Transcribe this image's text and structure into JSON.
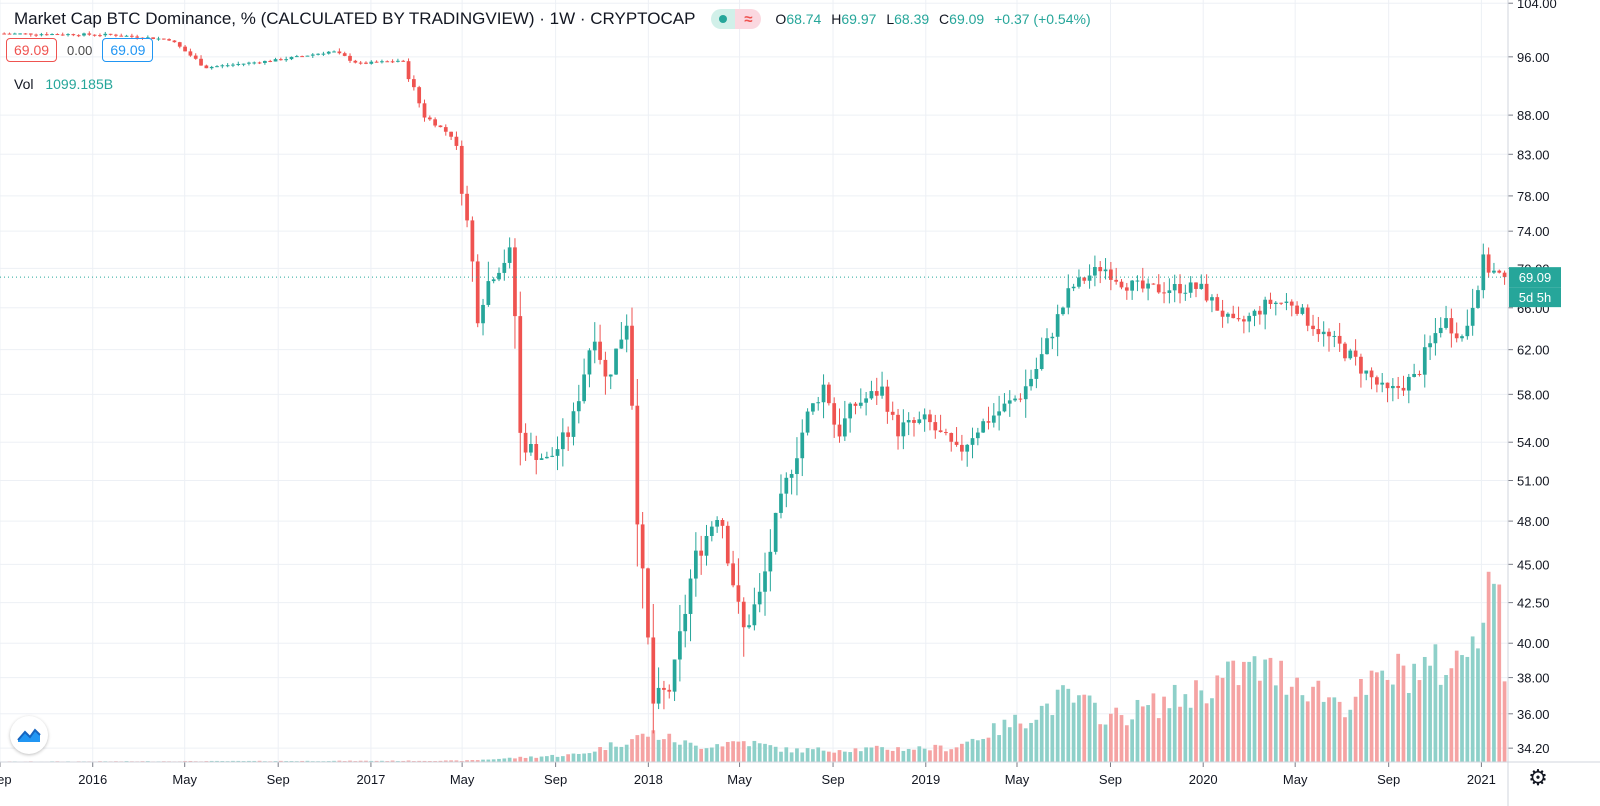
{
  "header": {
    "title": "Market Cap BTC Dominance, % (CALCULATED BY TRADINGVIEW) · 1W · CRYPTOCAP",
    "ohlc": {
      "o_label": "O",
      "o_value": "68.74",
      "h_label": "H",
      "h_value": "69.97",
      "l_label": "L",
      "l_value": "68.39",
      "c_label": "C",
      "c_value": "69.09",
      "change": "+0.37 (+0.54%)"
    }
  },
  "spread_row": {
    "bid": "69.09",
    "spread": "0.00",
    "ask": "69.09"
  },
  "volume": {
    "label": "Vol",
    "value": "1099.185B"
  },
  "price_axis": {
    "last_price_label": "69.09",
    "countdown_label": "5d 5h"
  },
  "colors": {
    "up": "#26a69a",
    "down": "#ef5350",
    "up_volume": "#8ed0c9",
    "down_volume": "#f5a3a3",
    "grid": "#edf0f5",
    "text": "#131722"
  },
  "icons": {
    "logo": "tradingview-logo-icon",
    "settings": "gear-icon",
    "eq": "equals-icon"
  },
  "chart_data": {
    "type": "candlestick",
    "title": "Market Cap BTC Dominance, % (CALCULATED BY TRADINGVIEW)",
    "interval": "1W",
    "exchange": "CRYPTOCAP",
    "y_scale": "log",
    "ylim": [
      33.5,
      104.5
    ],
    "y_ticks": [
      "104.00",
      "96.00",
      "88.00",
      "83.00",
      "78.00",
      "74.00",
      "70.00",
      "66.00",
      "62.00",
      "58.00",
      "54.00",
      "51.00",
      "48.00",
      "45.00",
      "42.50",
      "40.00",
      "38.00",
      "36.00",
      "34.20"
    ],
    "x_range": [
      "2015-09-01",
      "2021-02-05"
    ],
    "x_ticks": [
      {
        "date": "2015-09-01",
        "label": "Sep"
      },
      {
        "date": "2016-01-01",
        "label": "2016"
      },
      {
        "date": "2016-05-01",
        "label": "May"
      },
      {
        "date": "2016-09-01",
        "label": "Sep"
      },
      {
        "date": "2017-01-01",
        "label": "2017"
      },
      {
        "date": "2017-05-01",
        "label": "May"
      },
      {
        "date": "2017-09-01",
        "label": "Sep"
      },
      {
        "date": "2018-01-01",
        "label": "2018"
      },
      {
        "date": "2018-05-01",
        "label": "May"
      },
      {
        "date": "2018-09-01",
        "label": "Sep"
      },
      {
        "date": "2019-01-01",
        "label": "2019"
      },
      {
        "date": "2019-05-01",
        "label": "May"
      },
      {
        "date": "2019-09-01",
        "label": "Sep"
      },
      {
        "date": "2020-01-01",
        "label": "2020"
      },
      {
        "date": "2020-05-01",
        "label": "May"
      },
      {
        "date": "2020-09-01",
        "label": "Sep"
      },
      {
        "date": "2021-01-01",
        "label": "2021"
      }
    ],
    "last_close": 69.09,
    "price_anchors": [
      [
        "2015-09-01",
        99.4
      ],
      [
        "2016-02-01",
        99.2
      ],
      [
        "2016-04-15",
        98.5
      ],
      [
        "2016-06-01",
        94.5
      ],
      [
        "2016-09-01",
        95.5
      ],
      [
        "2016-11-15",
        96.8
      ],
      [
        "2016-12-20",
        95.0
      ],
      [
        "2017-02-15",
        95.5
      ],
      [
        "2017-03-15",
        88.0
      ],
      [
        "2017-04-25",
        85.0
      ],
      [
        "2017-05-25",
        66.0
      ],
      [
        "2017-06-10",
        69.0
      ],
      [
        "2017-07-10",
        72.0
      ],
      [
        "2017-07-18",
        54.2
      ],
      [
        "2017-08-25",
        52.5
      ],
      [
        "2017-09-25",
        55.0
      ],
      [
        "2017-10-25",
        64.0
      ],
      [
        "2017-11-10",
        59.0
      ],
      [
        "2017-12-08",
        65.0
      ],
      [
        "2017-12-25",
        45.0
      ],
      [
        "2018-01-10",
        36.5
      ],
      [
        "2018-02-05",
        37.5
      ],
      [
        "2018-03-05",
        45.0
      ],
      [
        "2018-04-08",
        49.0
      ],
      [
        "2018-05-08",
        40.5
      ],
      [
        "2018-06-01",
        43.0
      ],
      [
        "2018-07-01",
        50.0
      ],
      [
        "2018-08-01",
        56.0
      ],
      [
        "2018-08-25",
        59.0
      ],
      [
        "2018-09-10",
        54.5
      ],
      [
        "2018-10-01",
        57.0
      ],
      [
        "2018-11-10",
        58.5
      ],
      [
        "2018-11-25",
        55.0
      ],
      [
        "2019-01-05",
        55.8
      ],
      [
        "2019-02-15",
        53.0
      ],
      [
        "2019-03-10",
        55.0
      ],
      [
        "2019-05-10",
        58.0
      ],
      [
        "2019-06-01",
        60.5
      ],
      [
        "2019-07-15",
        68.0
      ],
      [
        "2019-08-25",
        70.2
      ],
      [
        "2019-09-20",
        68.5
      ],
      [
        "2019-10-20",
        67.8
      ],
      [
        "2019-12-01",
        68.0
      ],
      [
        "2020-01-01",
        68.0
      ],
      [
        "2020-02-15",
        64.0
      ],
      [
        "2020-04-01",
        66.5
      ],
      [
        "2020-05-01",
        66.5
      ],
      [
        "2020-06-01",
        64.0
      ],
      [
        "2020-07-15",
        61.5
      ],
      [
        "2020-09-01",
        58.0
      ],
      [
        "2020-10-10",
        59.5
      ],
      [
        "2020-11-15",
        65.0
      ],
      [
        "2020-12-12",
        63.0
      ],
      [
        "2021-01-05",
        70.5
      ],
      [
        "2021-01-31",
        69.09
      ]
    ],
    "volume_anchors": [
      [
        "2015-09-01",
        0.2
      ],
      [
        "2017-05-01",
        0.5
      ],
      [
        "2017-10-01",
        3.0
      ],
      [
        "2018-01-01",
        11.0
      ],
      [
        "2018-03-01",
        6.0
      ],
      [
        "2018-05-01",
        8.0
      ],
      [
        "2018-07-01",
        4.5
      ],
      [
        "2019-02-01",
        5.5
      ],
      [
        "2019-05-01",
        16.0
      ],
      [
        "2019-07-01",
        25.0
      ],
      [
        "2019-09-01",
        17.0
      ],
      [
        "2019-12-01",
        25.0
      ],
      [
        "2020-03-01",
        36.0
      ],
      [
        "2020-05-01",
        32.0
      ],
      [
        "2020-07-01",
        22.0
      ],
      [
        "2020-09-01",
        34.0
      ],
      [
        "2020-12-01",
        38.0
      ],
      [
        "2021-01-15",
        75.0
      ],
      [
        "2021-01-31",
        28.0
      ]
    ]
  }
}
